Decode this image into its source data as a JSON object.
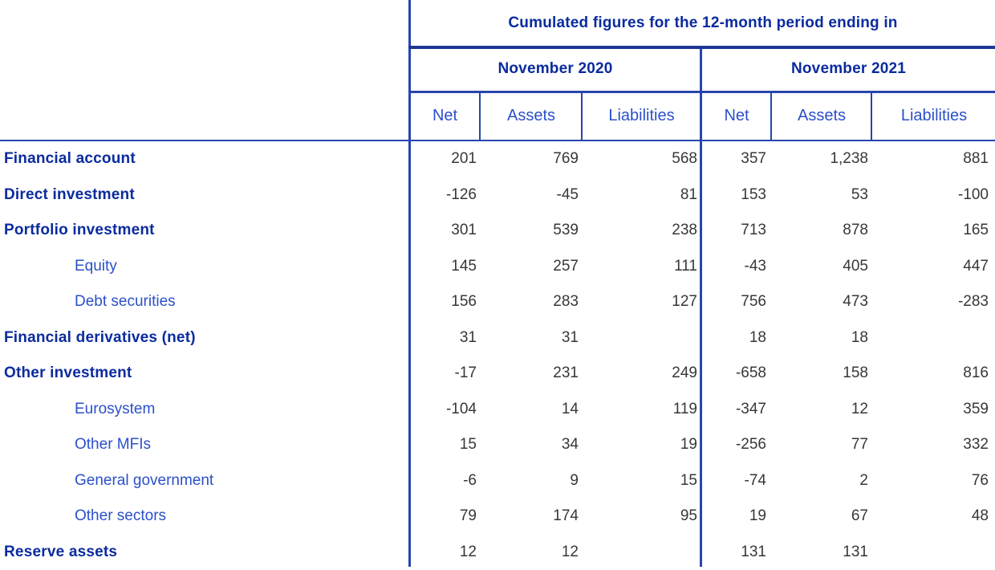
{
  "colors": {
    "heading_navy": "#0a2b9e",
    "sub_label_blue": "#2b50c8",
    "number_text": "#373737",
    "rule_blue": "#2646ad",
    "rule_dark_blue": "#1d3795"
  },
  "chart_data": {
    "type": "table",
    "title": "Cumulated figures for the 12-month period ending in",
    "col_groups": [
      {
        "label": "November 2020"
      },
      {
        "label": "November 2021"
      }
    ],
    "sub_headers": [
      "Net",
      "Assets",
      "Liabilities",
      "Net",
      "Assets",
      "Liabilities"
    ],
    "rows": [
      {
        "label": "Financial account",
        "bold": true,
        "values": [
          "201",
          "769",
          "568",
          "357",
          "1,238",
          "881"
        ]
      },
      {
        "label": "Direct investment",
        "bold": true,
        "values": [
          "-126",
          "-45",
          "81",
          "153",
          "53",
          "-100"
        ]
      },
      {
        "label": "Portfolio investment",
        "bold": true,
        "values": [
          "301",
          "539",
          "238",
          "713",
          "878",
          "165"
        ]
      },
      {
        "label": "Equity",
        "bold": false,
        "values": [
          "145",
          "257",
          "111",
          "-43",
          "405",
          "447"
        ]
      },
      {
        "label": "Debt securities",
        "bold": false,
        "values": [
          "156",
          "283",
          "127",
          "756",
          "473",
          "-283"
        ]
      },
      {
        "label": "Financial derivatives (net)",
        "bold": true,
        "values": [
          "31",
          "31",
          "",
          "18",
          "18",
          ""
        ]
      },
      {
        "label": "Other investment",
        "bold": true,
        "values": [
          "-17",
          "231",
          "249",
          "-658",
          "158",
          "816"
        ]
      },
      {
        "label": "Eurosystem",
        "bold": false,
        "values": [
          "-104",
          "14",
          "119",
          "-347",
          "12",
          "359"
        ]
      },
      {
        "label": "Other MFIs",
        "bold": false,
        "values": [
          "15",
          "34",
          "19",
          "-256",
          "77",
          "332"
        ]
      },
      {
        "label": "General government",
        "bold": false,
        "values": [
          "-6",
          "9",
          "15",
          "-74",
          "2",
          "76"
        ]
      },
      {
        "label": "Other sectors",
        "bold": false,
        "values": [
          "79",
          "174",
          "95",
          "19",
          "67",
          "48"
        ]
      },
      {
        "label": "Reserve assets",
        "bold": true,
        "values": [
          "12",
          "12",
          "",
          "131",
          "131",
          ""
        ]
      }
    ]
  }
}
